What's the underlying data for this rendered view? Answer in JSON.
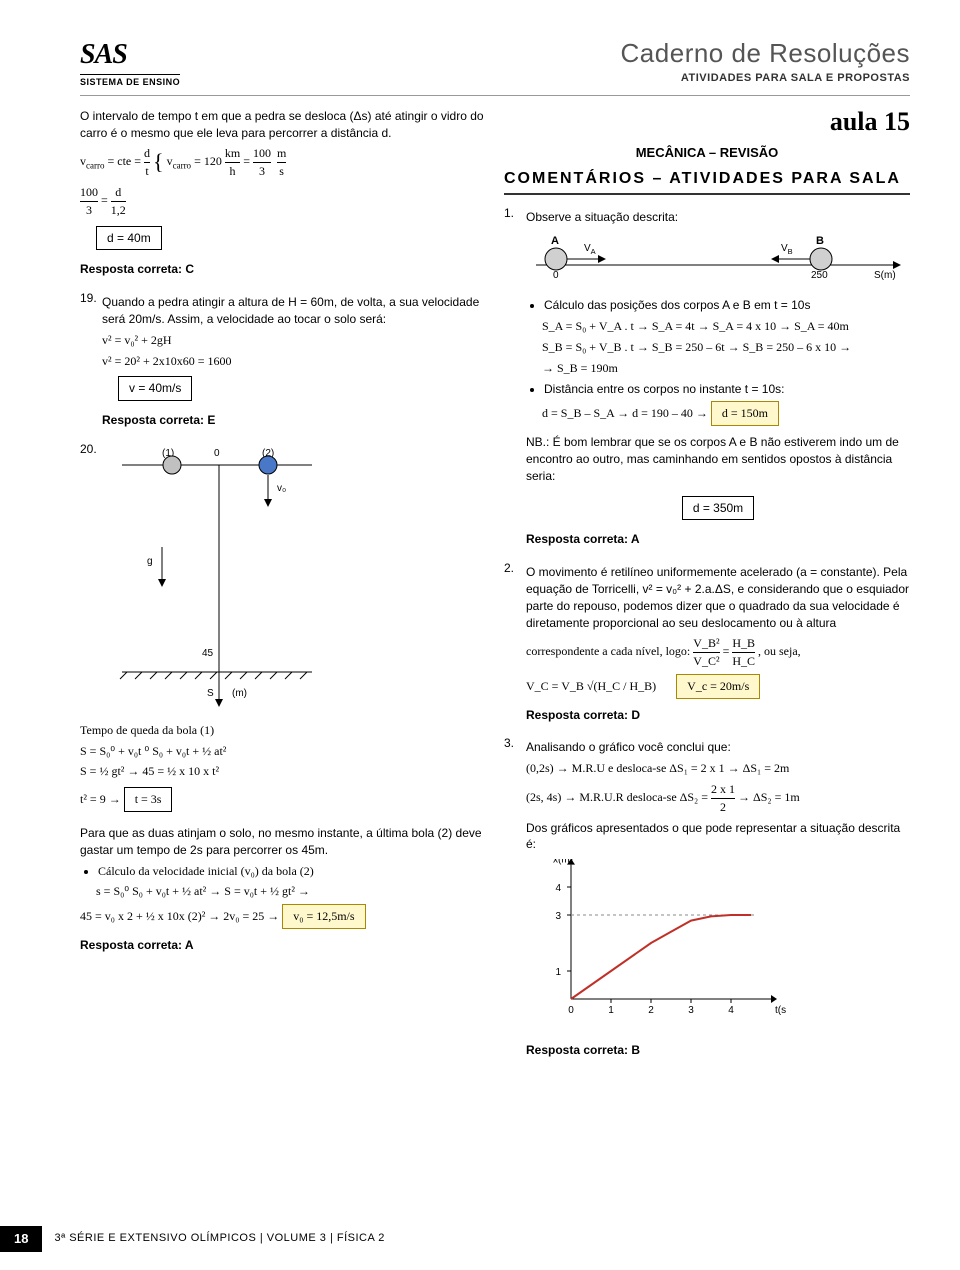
{
  "header": {
    "logo": "SAS",
    "logo_sub": "SISTEMA DE ENSINO",
    "title": "Caderno de Resoluções",
    "subtitle": "ATIVIDADES PARA SALA E PROPOSTAS"
  },
  "aula": "aula 15",
  "section_title": "MECÂNICA – REVISÃO",
  "comentarios": "COMENTÁRIOS – ATIVIDADES PARA SALA",
  "left": {
    "intro": "O intervalo de tempo t em que a pedra se desloca (Δs) até atingir o vidro do carro é o mesmo que ele leva para percorrer a distância d.",
    "eq1_a": "v",
    "eq1_carro": "carro",
    "eq1_b": " = cte = ",
    "eq1_frac_n": "d",
    "eq1_frac_d": "t",
    "eq1_c": "v",
    "eq1_d": " = 120 ",
    "eq1_km": "km",
    "eq1_h": "h",
    "eq1_e": " = ",
    "eq1_100": "100",
    "eq1_3": "3",
    "eq1_ms": "m",
    "eq1_s": "s",
    "eq2_a": "100",
    "eq2_b": "3",
    "eq2_c": " = ",
    "eq2_d": "d",
    "eq2_e": "1,2",
    "eq3": "d = 40m",
    "resp_c": "Resposta correta: C",
    "q19_num": "19.",
    "q19_text": "Quando a pedra atingir a altura de H = 60m, de volta, a sua velocidade será 20m/s. Assim, a velocidade ao tocar o solo será:",
    "q19_eq1": "v² = v₀² + 2gH",
    "q19_eq2": "v² = 20² + 2x10x60 = 1600",
    "q19_eq3": "v = 40m/s",
    "resp_e": "Resposta correta: E",
    "q20_num": "20.",
    "tempo_title": "Tempo de queda da bola (1)",
    "t_eq1": "S = S₀⁰ + v₀t ⁰ S₀ + v₀t + ½ at²",
    "t_eq2": "S = ½ gt² → 45 = ½ x 10 x t²",
    "t_eq3a": "t² = 9 → ",
    "t_eq3b": "t = 3s",
    "para_text": "Para que as duas atinjam o solo, no mesmo instante, a última bola (2) deve gastar um tempo de 2s para percorrer os 45m.",
    "calc_v0_title": "Cálculo da velocidade inicial (v₀) da bola (2)",
    "v0_eq1": "s = S₀⁰ S₀ + v₀t + ½ at² → S = v₀t + ½ gt² →",
    "v0_eq2a": "45 = v₀ x 2 + ½ x 10x (2)² → 2v₀ = 25 → ",
    "v0_eq2b": "v₀ = 12,5m/s",
    "resp_a1": "Resposta correta: A"
  },
  "right": {
    "q1_num": "1.",
    "q1_text": "Observe a situação descrita:",
    "diagram1": {
      "labels": {
        "A": "A",
        "B": "B",
        "VA": "V",
        "VB": "V",
        "zero": "0",
        "x250": "250",
        "sm": "S(m)"
      },
      "colors": {
        "line": "#000",
        "circle": "#d0d0d0"
      }
    },
    "bul1": "Cálculo das posições dos corpos A e B em t = 10s",
    "sa_line": "S_A = S₀ + V_A . t → S_A = 4t → S_A = 4 x 10 → S_A = 40m",
    "sb_line1": "S_B = S₀ + V_B . t → S_B = 250 – 6t → S_B = 250 – 6 x 10 →",
    "sb_line2": "→ S_B = 190m",
    "bul2": "Distância entre os corpos no instante t = 10s:",
    "d_line_a": "d = S_B – S_A → d = 190 – 40 → ",
    "d_line_b": "d = 150m",
    "nb": "NB.: É bom lembrar que se os corpos A e B não estiverem indo um de encontro ao outro, mas caminhando em sentidos opostos à distância seria:",
    "d350": "d = 350m",
    "resp_a2": "Resposta correta: A",
    "q2_num": "2.",
    "q2_text": "O movimento é retilíneo uniformemente acelerado (a = constante). Pela equação de Torricelli, v² = v₀² + 2.a.ΔS, e considerando que o esquiador parte do repouso, podemos dizer que o quadrado da sua velocidade é diretamente proporcional ao seu deslocamento ou à altura",
    "q2_text2a": "correspondente a cada nível, logo: ",
    "q2_frac_tn": "V_B²",
    "q2_frac_td": "V_C²",
    "q2_eq": " = ",
    "q2_frac_rn": "H_B",
    "q2_frac_rd": "H_C",
    "q2_text2b": ", ou seja,",
    "vc_line_a": "V_C = V_B √(H_C / H_B)",
    "vc_box": "V_c = 20m/s",
    "resp_d": "Resposta correta: D",
    "q3_num": "3.",
    "q3_text": "Analisando o gráfico você conclui que:",
    "q3_l1": "(0,2s) → M.R.U e desloca-se ΔS₁ = 2 x 1 → ΔS₁ = 2m",
    "q3_l2a": "(2s, 4s) → M.R.U.R desloca-se ΔS₂ = ",
    "q3_l2_fn": "2 x 1",
    "q3_l2_fd": "2",
    "q3_l2b": " → ΔS₂ = 1m",
    "q3_l3": "Dos gráficos apresentados o que pode representar a situação descrita é:",
    "chart": {
      "xlabel": "t(s)",
      "ylabel": "x(m)",
      "xticks": [
        "0",
        "1",
        "2",
        "3",
        "4"
      ],
      "yticks": [
        "1",
        "3",
        "4"
      ],
      "linecolor": "#c03028",
      "axiscolor": "#000",
      "points_x": [
        0,
        1,
        2,
        2.5,
        3,
        3.5,
        4,
        4.5
      ],
      "points_y": [
        0,
        1,
        2,
        2.4,
        2.8,
        2.95,
        3,
        3
      ]
    },
    "resp_b": "Resposta correta: B"
  },
  "diagram20": {
    "labels": {
      "p1": "(1)",
      "zero": "0",
      "p2": "(2)",
      "v0": "v₀",
      "g": "g",
      "d45": "45",
      "s": "S",
      "m": "(m)"
    },
    "colors": {
      "ball1": "#c0c0c0",
      "ball2": "#4a78c8",
      "arrow": "#000"
    }
  },
  "footer": {
    "page": "18",
    "info": "3ª SÉRIE E EXTENSIVO OLÍMPICOS   |   VOLUME 3   |   FÍSICA 2"
  }
}
